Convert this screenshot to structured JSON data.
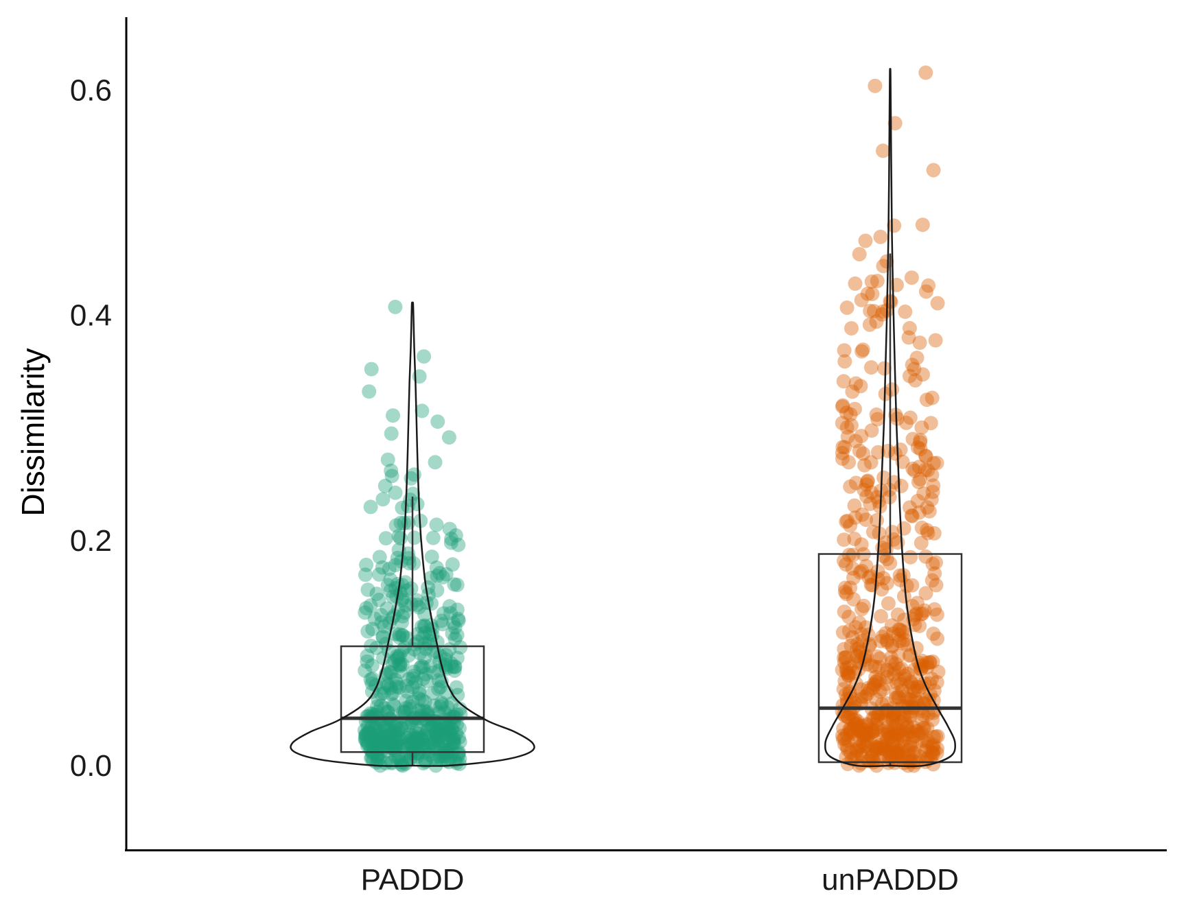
{
  "chart_data": {
    "type": "violin-box-jitter",
    "title": "",
    "xlabel": "",
    "ylabel": "Dissimilarity",
    "ylim": [
      -0.075,
      0.665
    ],
    "yticks": [
      0.0,
      0.2,
      0.4,
      0.6
    ],
    "ytick_labels": [
      "0.0",
      "0.2",
      "0.4",
      "0.6"
    ],
    "grid": false,
    "legend": "none",
    "categories": [
      "PADDD",
      "unPADDD"
    ],
    "colors": {
      "PADDD": "#1b9e77",
      "unPADDD": "#d95f02"
    },
    "point_opacity": 0.4,
    "groups": [
      {
        "name": "PADDD",
        "color": "#1b9e77",
        "box": {
          "whisker_low": 0.0,
          "q1": 0.012,
          "median": 0.042,
          "q3": 0.106,
          "whisker_high": 0.239
        },
        "violin_max": 0.41,
        "violin_profile": [
          [
            0.0,
            0.3
          ],
          [
            0.005,
            0.75
          ],
          [
            0.012,
            0.98
          ],
          [
            0.02,
            1.0
          ],
          [
            0.03,
            0.85
          ],
          [
            0.04,
            0.62
          ],
          [
            0.055,
            0.4
          ],
          [
            0.07,
            0.3
          ],
          [
            0.09,
            0.24
          ],
          [
            0.11,
            0.2
          ],
          [
            0.13,
            0.16
          ],
          [
            0.16,
            0.11
          ],
          [
            0.19,
            0.08
          ],
          [
            0.22,
            0.06
          ],
          [
            0.26,
            0.045
          ],
          [
            0.3,
            0.035
          ],
          [
            0.34,
            0.025
          ],
          [
            0.37,
            0.015
          ],
          [
            0.39,
            0.01
          ],
          [
            0.41,
            0.005
          ]
        ],
        "outliers": [
          0.406,
          0.363,
          0.35,
          0.345,
          0.33,
          0.318,
          0.31,
          0.305,
          0.295,
          0.292,
          0.272,
          0.268,
          0.262,
          0.258,
          0.256,
          0.252,
          0.245,
          0.241
        ]
      },
      {
        "name": "unPADDD",
        "color": "#d95f02",
        "box": {
          "whisker_low": 0.0,
          "q1": 0.003,
          "median": 0.051,
          "q3": 0.188,
          "whisker_high": 0.455
        },
        "violin_max": 0.615,
        "violin_profile": [
          [
            0.0,
            0.28
          ],
          [
            0.008,
            0.5
          ],
          [
            0.02,
            0.54
          ],
          [
            0.035,
            0.48
          ],
          [
            0.05,
            0.4
          ],
          [
            0.07,
            0.3
          ],
          [
            0.09,
            0.23
          ],
          [
            0.12,
            0.17
          ],
          [
            0.15,
            0.13
          ],
          [
            0.19,
            0.1
          ],
          [
            0.23,
            0.08
          ],
          [
            0.27,
            0.065
          ],
          [
            0.31,
            0.05
          ],
          [
            0.35,
            0.04
          ],
          [
            0.39,
            0.03
          ],
          [
            0.43,
            0.022
          ],
          [
            0.47,
            0.015
          ],
          [
            0.52,
            0.01
          ],
          [
            0.56,
            0.007
          ],
          [
            0.615,
            0.003
          ]
        ],
        "outliers": [
          0.617,
          0.6,
          0.568,
          0.55,
          0.527,
          0.48,
          0.477,
          0.467,
          0.463,
          0.458,
          0.445,
          0.442,
          0.432,
          0.43,
          0.428,
          0.425,
          0.42,
          0.415,
          0.41,
          0.405,
          0.395,
          0.385,
          0.378,
          0.375,
          0.368,
          0.36,
          0.355,
          0.348,
          0.342,
          0.338,
          0.332,
          0.326,
          0.32,
          0.315,
          0.308,
          0.301,
          0.296,
          0.29,
          0.283,
          0.277,
          0.27,
          0.262,
          0.255,
          0.248,
          0.24,
          0.232,
          0.224,
          0.217,
          0.21,
          0.203,
          0.196,
          0.19
        ]
      }
    ]
  }
}
